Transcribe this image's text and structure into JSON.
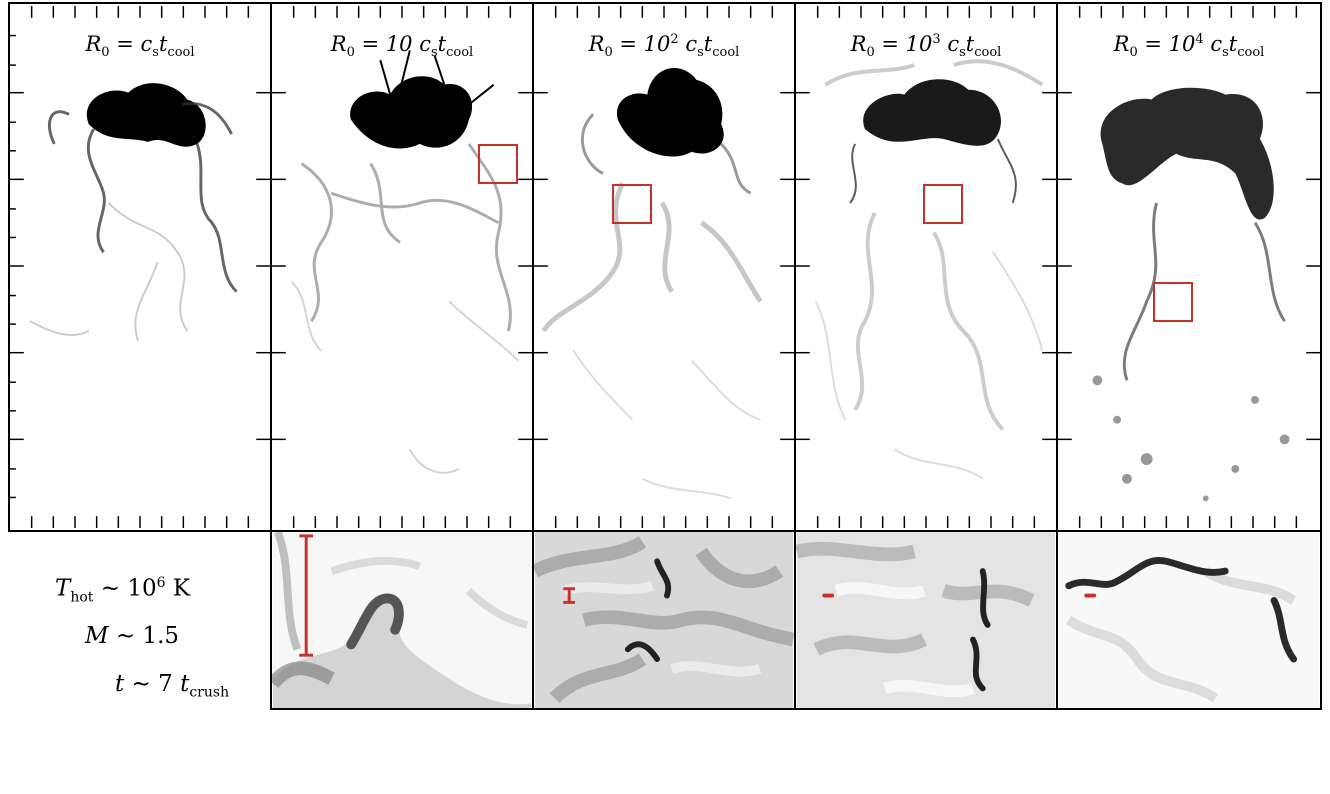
{
  "panels": [
    {
      "id": "p1",
      "title_main": "R",
      "title_sub": "0",
      "title_rest": " = c",
      "title_rest_sub": "s",
      "title_t": "t",
      "title_t_sub": "cool",
      "title_exp": ""
    },
    {
      "id": "p2",
      "title_main": "R",
      "title_sub": "0",
      "title_rest": " = 10 c",
      "title_rest_sub": "s",
      "title_t": "t",
      "title_t_sub": "cool",
      "title_exp": ""
    },
    {
      "id": "p3",
      "title_main": "R",
      "title_sub": "0",
      "title_rest": " = 10",
      "title_rest_sub": "s",
      "title_t": "t",
      "title_t_sub": "cool",
      "title_exp": "2"
    },
    {
      "id": "p4",
      "title_main": "R",
      "title_sub": "0",
      "title_rest": " = 10",
      "title_rest_sub": "s",
      "title_t": "t",
      "title_t_sub": "cool",
      "title_exp": "3"
    },
    {
      "id": "p5",
      "title_main": "R",
      "title_sub": "0",
      "title_rest": " = 10",
      "title_rest_sub": "s",
      "title_t": "t",
      "title_t_sub": "cool",
      "title_exp": "4"
    }
  ],
  "info": {
    "t_hot_sym": "T",
    "t_hot_sub": "hot",
    "t_hot_val": " ∼ 10",
    "t_hot_exp": "6",
    "t_hot_unit": " K",
    "mach_sym": "M",
    "mach_val": " ∼ 1.5",
    "time_sym": "t",
    "time_val": " ∼ 7 ",
    "time_t": "t",
    "time_sub": "crush"
  },
  "colors": {
    "scale_bar": "#c8302c",
    "zoom_box": "#c8302c",
    "cold_gas": "#000000"
  }
}
